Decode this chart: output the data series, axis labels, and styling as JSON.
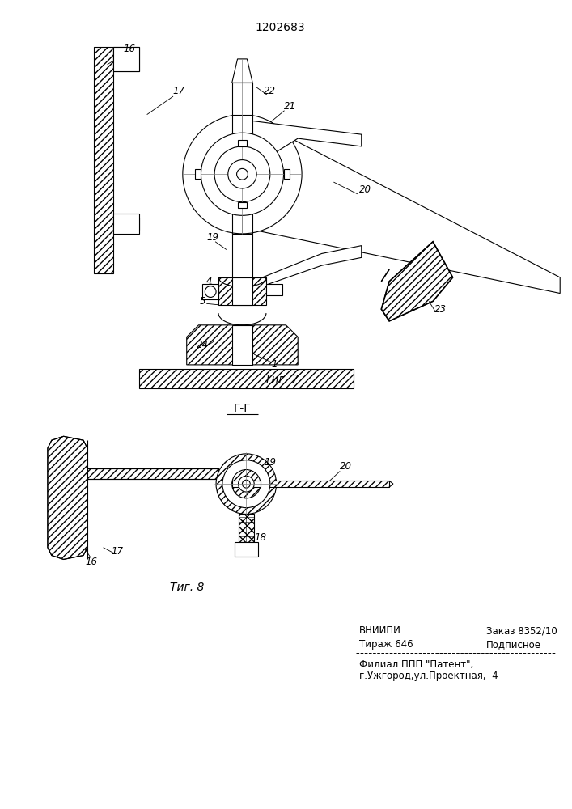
{
  "title": "1202683",
  "footer_line1_left": "ВНИИПИ",
  "footer_line1_right": "Заказ 8352/10",
  "footer_line2_left": "Тираж 646",
  "footer_line2_right": "Подписное",
  "footer_line3": "Филиал ППП \"Патент\",",
  "footer_line4": "г.Ужгород,ул.Проектная,  4",
  "bg_color": "#ffffff",
  "line_color": "#000000"
}
